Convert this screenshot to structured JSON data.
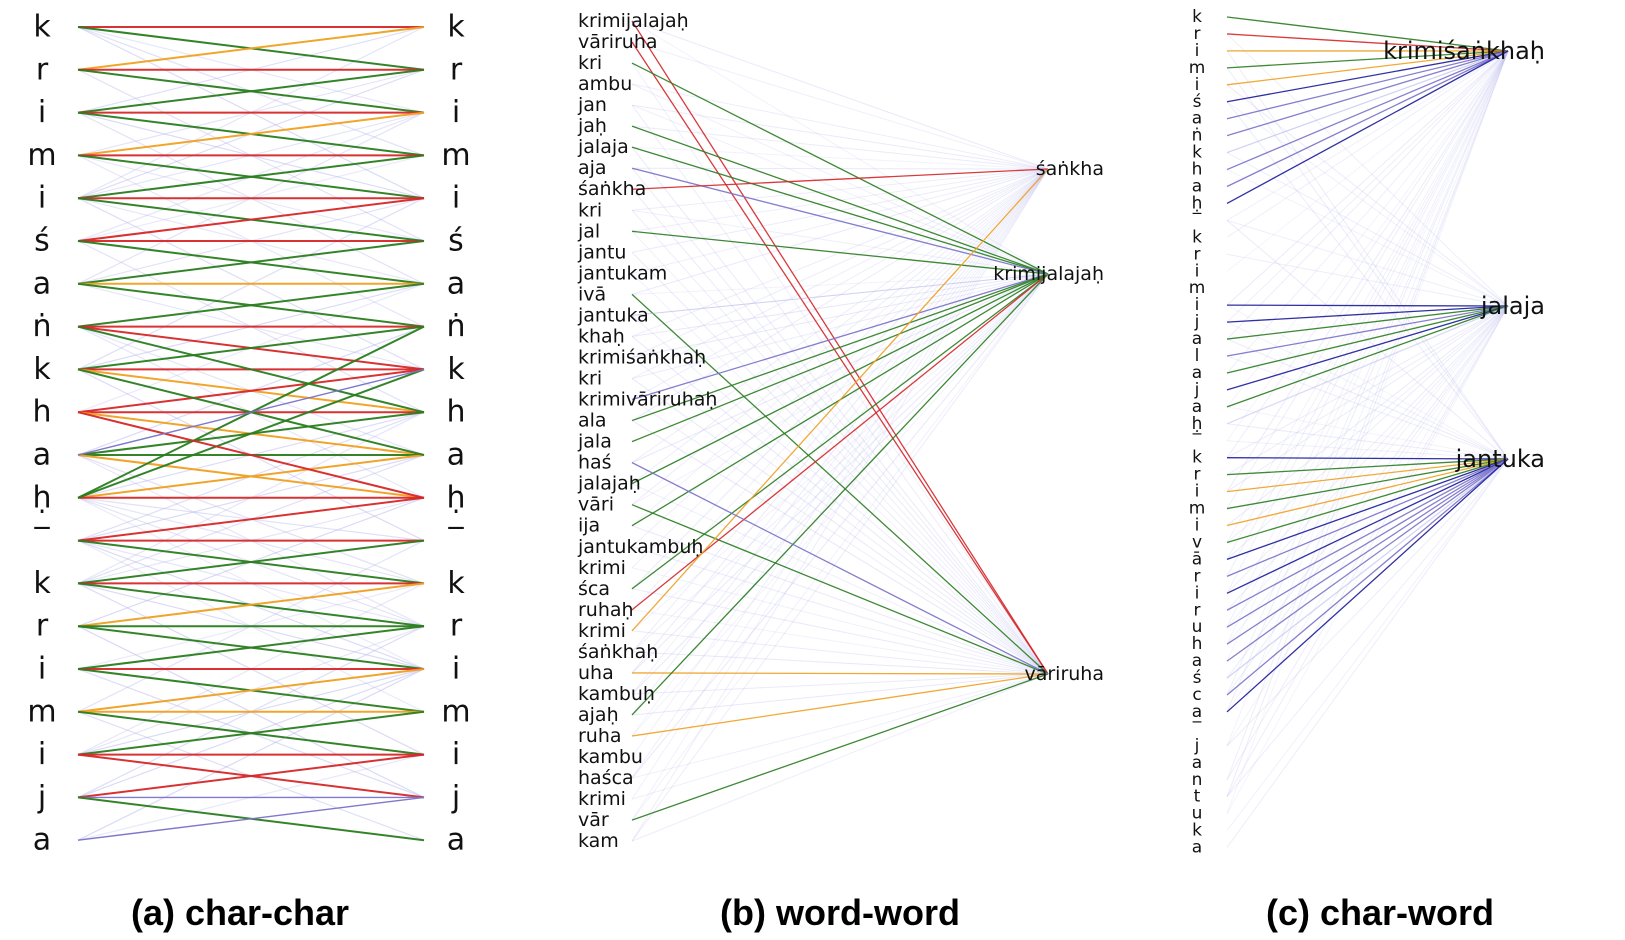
{
  "colors": {
    "red": "#d62728",
    "green": "#2a7d1f",
    "orange": "#f0a020",
    "blue": "#1a1a9a",
    "purple": "#7a72c8",
    "faint": "#b8b8ee",
    "magenta": "#e020d0",
    "label_red": "#d00000"
  },
  "panel_a": {
    "caption": "(a) char-char",
    "chars": [
      "k",
      "r",
      "i",
      "m",
      "i",
      "ś",
      "a",
      "ṅ",
      "k",
      "h",
      "a",
      "ḥ",
      "_",
      "k",
      "r",
      "i",
      "m",
      "i",
      "j",
      "a"
    ],
    "edges": [
      [
        0,
        0,
        "red"
      ],
      [
        0,
        1,
        "green"
      ],
      [
        1,
        0,
        "orange"
      ],
      [
        1,
        1,
        "red"
      ],
      [
        1,
        2,
        "green"
      ],
      [
        2,
        1,
        "green"
      ],
      [
        2,
        2,
        "red"
      ],
      [
        2,
        3,
        "green"
      ],
      [
        3,
        2,
        "orange"
      ],
      [
        3,
        3,
        "red"
      ],
      [
        3,
        4,
        "green"
      ],
      [
        4,
        3,
        "green"
      ],
      [
        4,
        4,
        "red"
      ],
      [
        4,
        5,
        "green"
      ],
      [
        5,
        4,
        "red"
      ],
      [
        5,
        5,
        "red"
      ],
      [
        5,
        6,
        "green"
      ],
      [
        6,
        5,
        "green"
      ],
      [
        6,
        6,
        "orange"
      ],
      [
        6,
        7,
        "green"
      ],
      [
        7,
        6,
        "green"
      ],
      [
        7,
        7,
        "red"
      ],
      [
        7,
        8,
        "red"
      ],
      [
        8,
        7,
        "green"
      ],
      [
        8,
        8,
        "red"
      ],
      [
        8,
        9,
        "orange"
      ],
      [
        9,
        8,
        "red"
      ],
      [
        9,
        9,
        "red"
      ],
      [
        9,
        10,
        "orange"
      ],
      [
        10,
        9,
        "green"
      ],
      [
        10,
        10,
        "green"
      ],
      [
        10,
        11,
        "orange"
      ],
      [
        11,
        10,
        "orange"
      ],
      [
        11,
        11,
        "red"
      ],
      [
        11,
        7,
        "green"
      ],
      [
        11,
        8,
        "green"
      ],
      [
        12,
        11,
        "red"
      ],
      [
        12,
        12,
        "red"
      ],
      [
        12,
        13,
        "green"
      ],
      [
        13,
        12,
        "green"
      ],
      [
        13,
        13,
        "red"
      ],
      [
        13,
        14,
        "green"
      ],
      [
        14,
        13,
        "orange"
      ],
      [
        14,
        14,
        "green"
      ],
      [
        14,
        15,
        "green"
      ],
      [
        15,
        14,
        "green"
      ],
      [
        15,
        15,
        "red"
      ],
      [
        15,
        16,
        "green"
      ],
      [
        16,
        15,
        "orange"
      ],
      [
        16,
        16,
        "orange"
      ],
      [
        16,
        17,
        "green"
      ],
      [
        17,
        16,
        "green"
      ],
      [
        17,
        17,
        "red"
      ],
      [
        17,
        18,
        "red"
      ],
      [
        18,
        17,
        "red"
      ],
      [
        18,
        18,
        "purple"
      ],
      [
        18,
        19,
        "green"
      ],
      [
        19,
        18,
        "purple"
      ],
      [
        7,
        9,
        "green"
      ],
      [
        8,
        10,
        "green"
      ],
      [
        9,
        11,
        "red"
      ],
      [
        10,
        8,
        "purple"
      ]
    ]
  },
  "panel_b": {
    "caption": "(b) word-word",
    "left_words": [
      "krimijalajaḥ",
      "vāriruha",
      "kri",
      "ambu",
      "jan",
      "jaḥ",
      "jalaja",
      "aja",
      "śaṅkha",
      "kri",
      "jal",
      "jantu",
      "jantukam",
      "ivā",
      "jantuka",
      "khaḥ",
      "krimiśaṅkhaḥ",
      "kri",
      "krimivāriruhaḥ",
      "ala",
      "jala",
      "haś",
      "jalajaḥ",
      "vāri",
      "ija",
      "jantukambuḥ",
      "krimi",
      "śca",
      "ruhaḥ",
      "krimi",
      "śaṅkhaḥ",
      "uha",
      "kambuḥ",
      "ajaḥ",
      "ruha",
      "kambu",
      "haśca",
      "krimi",
      "vār",
      "kam"
    ],
    "right_words": [
      "śaṅkha",
      "krimijalajaḥ",
      "vāriruha"
    ],
    "edges": [
      [
        0,
        2,
        "red"
      ],
      [
        1,
        2,
        "red"
      ],
      [
        2,
        1,
        "green"
      ],
      [
        5,
        1,
        "green"
      ],
      [
        6,
        1,
        "green"
      ],
      [
        7,
        1,
        "purple"
      ],
      [
        8,
        0,
        "red"
      ],
      [
        10,
        1,
        "green"
      ],
      [
        13,
        2,
        "green"
      ],
      [
        18,
        1,
        "purple"
      ],
      [
        19,
        1,
        "green"
      ],
      [
        20,
        1,
        "green"
      ],
      [
        22,
        1,
        "green"
      ],
      [
        23,
        2,
        "green"
      ],
      [
        24,
        1,
        "green"
      ],
      [
        27,
        1,
        "green"
      ],
      [
        28,
        1,
        "red"
      ],
      [
        29,
        0,
        "orange"
      ],
      [
        31,
        2,
        "orange"
      ],
      [
        33,
        1,
        "green"
      ],
      [
        34,
        2,
        "orange"
      ],
      [
        38,
        2,
        "green"
      ],
      [
        21,
        2,
        "purple"
      ],
      [
        14,
        1,
        "faint"
      ]
    ]
  },
  "panel_c": {
    "caption": "(c) char-word",
    "chars": [
      "k",
      "r",
      "i",
      "m",
      "i",
      "ś",
      "a",
      "ṅ",
      "k",
      "h",
      "a",
      "ḥ",
      "_",
      "k",
      "r",
      "i",
      "m",
      "i",
      "j",
      "a",
      "l",
      "a",
      "j",
      "a",
      "ḥ",
      "_",
      "k",
      "r",
      "i",
      "m",
      "i",
      "v",
      "ā",
      "r",
      "i",
      "r",
      "u",
      "h",
      "a",
      "ś",
      "c",
      "a",
      "_",
      "j",
      "a",
      "n",
      "t",
      "u",
      "k",
      "a"
    ],
    "targets": [
      {
        "label": "krimiśaṅkhaḥ",
        "color": "magenta"
      },
      {
        "label": "jalaja",
        "color": "label_black"
      },
      {
        "label": "jantuka",
        "color": "label_red"
      }
    ],
    "edges": [
      [
        0,
        0,
        "green"
      ],
      [
        1,
        0,
        "red"
      ],
      [
        2,
        0,
        "orange"
      ],
      [
        3,
        0,
        "green"
      ],
      [
        4,
        0,
        "orange"
      ],
      [
        5,
        0,
        "blue"
      ],
      [
        6,
        0,
        "purple"
      ],
      [
        7,
        0,
        "purple"
      ],
      [
        8,
        0,
        "faint"
      ],
      [
        9,
        0,
        "purple"
      ],
      [
        10,
        0,
        "purple"
      ],
      [
        11,
        0,
        "blue"
      ],
      [
        17,
        1,
        "blue"
      ],
      [
        18,
        1,
        "blue"
      ],
      [
        19,
        1,
        "green"
      ],
      [
        20,
        1,
        "purple"
      ],
      [
        21,
        1,
        "green"
      ],
      [
        22,
        1,
        "blue"
      ],
      [
        23,
        1,
        "green"
      ],
      [
        24,
        1,
        "faint"
      ],
      [
        26,
        2,
        "blue"
      ],
      [
        27,
        2,
        "green"
      ],
      [
        28,
        2,
        "orange"
      ],
      [
        29,
        2,
        "green"
      ],
      [
        30,
        2,
        "orange"
      ],
      [
        31,
        2,
        "green"
      ],
      [
        32,
        2,
        "blue"
      ],
      [
        33,
        2,
        "purple"
      ],
      [
        34,
        2,
        "blue"
      ],
      [
        35,
        2,
        "purple"
      ],
      [
        36,
        2,
        "purple"
      ],
      [
        37,
        2,
        "purple"
      ],
      [
        38,
        2,
        "purple"
      ],
      [
        39,
        2,
        "faint"
      ],
      [
        40,
        2,
        "purple"
      ],
      [
        41,
        2,
        "blue"
      ]
    ]
  }
}
